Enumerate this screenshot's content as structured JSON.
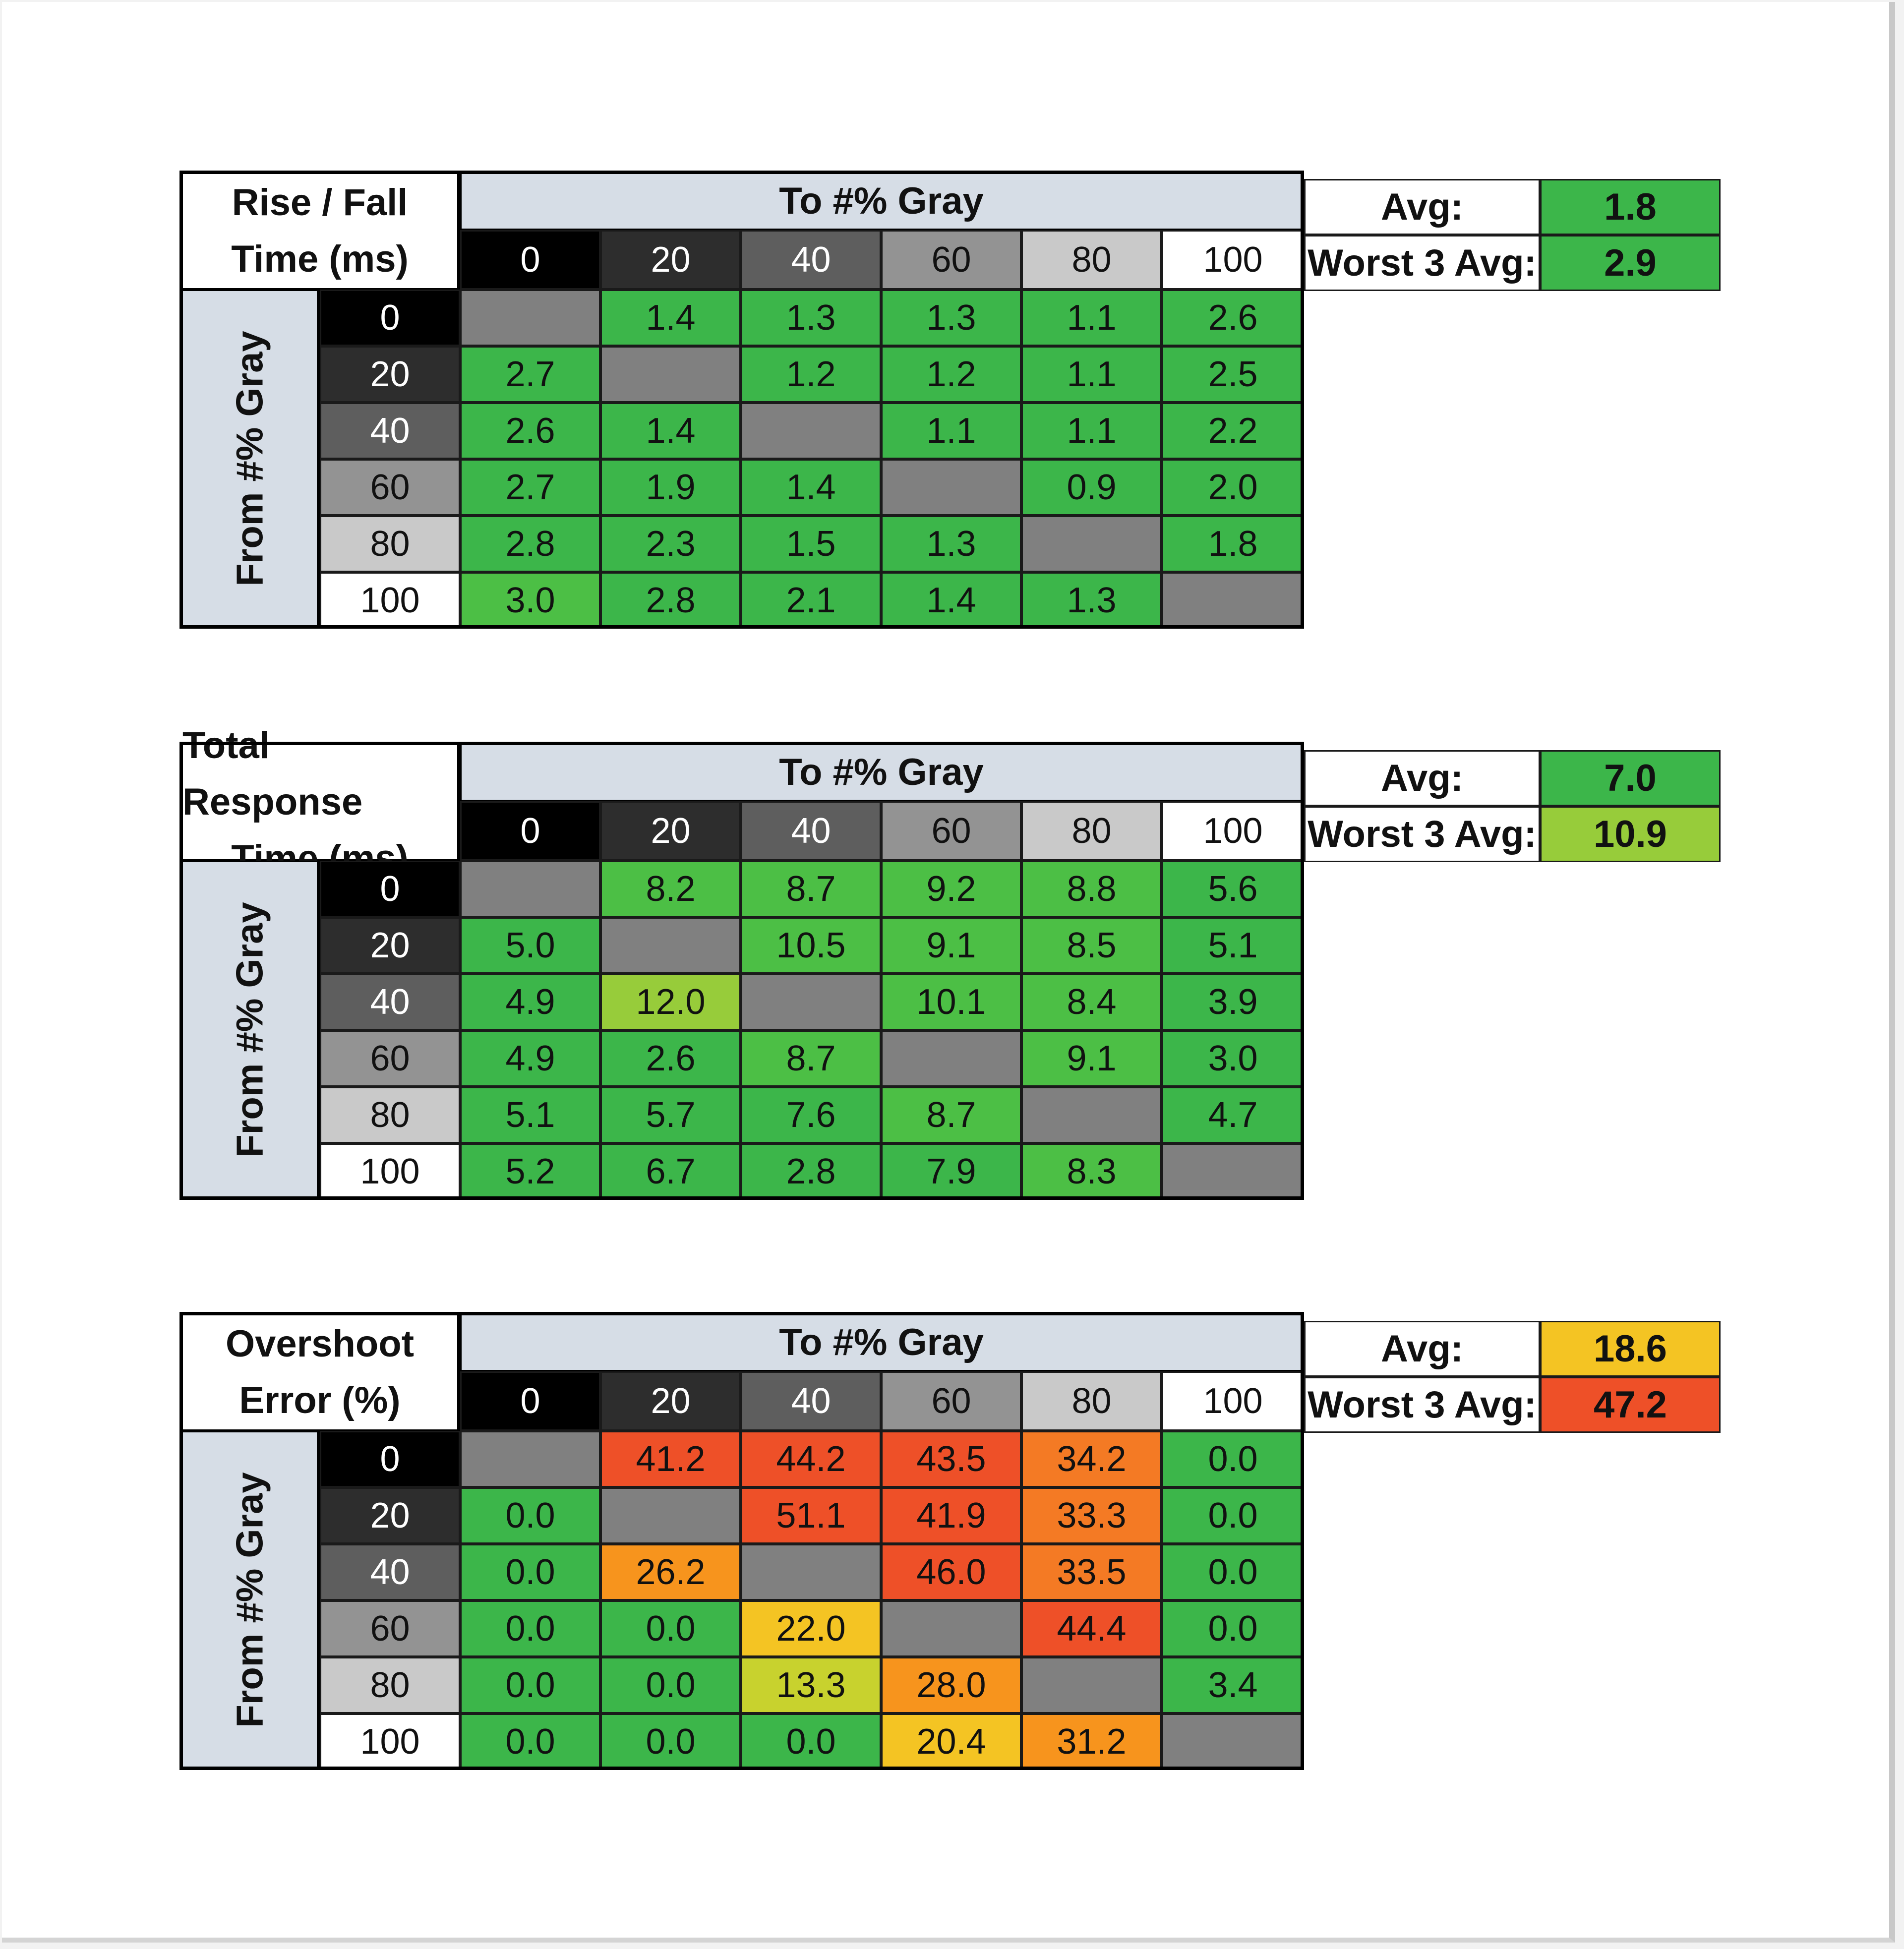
{
  "to_label": "To #% Gray",
  "from_label": "From #% Gray",
  "levels": [
    "0",
    "20",
    "40",
    "60",
    "80",
    "100"
  ],
  "level_colors": {
    "bg": [
      "#000000",
      "#2d2d2d",
      "#5e5e5e",
      "#939393",
      "#c9c9c9",
      "#ffffff"
    ],
    "fg": [
      "#ffffff",
      "#ffffff",
      "#ffffff",
      "#111111",
      "#111111",
      "#111111"
    ]
  },
  "avg_label": "Avg:",
  "worst_label": "Worst 3 Avg:",
  "colors": {
    "diagonal": "#808080",
    "scale": [
      "#3cb64a",
      "#4cbf45",
      "#97cc3a",
      "#c8d22e",
      "#f4c423",
      "#f7941d",
      "#f47a24",
      "#ee5028",
      "#e9402a"
    ]
  },
  "chart_data": [
    {
      "type": "table",
      "title_lines": [
        "Rise / Fall",
        "Time (ms)"
      ],
      "metric": "rise_fall",
      "columns": [
        "0",
        "20",
        "40",
        "60",
        "80",
        "100"
      ],
      "rows": [
        "0",
        "20",
        "40",
        "60",
        "80",
        "100"
      ],
      "values": [
        [
          null,
          "1.4",
          "1.3",
          "1.3",
          "1.1",
          "2.6"
        ],
        [
          "2.7",
          null,
          "1.2",
          "1.2",
          "1.1",
          "2.5"
        ],
        [
          "2.6",
          "1.4",
          null,
          "1.1",
          "1.1",
          "2.2"
        ],
        [
          "2.7",
          "1.9",
          "1.4",
          null,
          "0.9",
          "2.0"
        ],
        [
          "2.8",
          "2.3",
          "1.5",
          "1.3",
          null,
          "1.8"
        ],
        [
          "3.0",
          "2.8",
          "2.1",
          "1.4",
          "1.3",
          null
        ]
      ],
      "avg": "1.8",
      "worst3_avg": "2.9"
    },
    {
      "type": "table",
      "title_lines": [
        "Total Response",
        "Time (ms)"
      ],
      "metric": "total",
      "columns": [
        "0",
        "20",
        "40",
        "60",
        "80",
        "100"
      ],
      "rows": [
        "0",
        "20",
        "40",
        "60",
        "80",
        "100"
      ],
      "values": [
        [
          null,
          "8.2",
          "8.7",
          "9.2",
          "8.8",
          "5.6"
        ],
        [
          "5.0",
          null,
          "10.5",
          "9.1",
          "8.5",
          "5.1"
        ],
        [
          "4.9",
          "12.0",
          null,
          "10.1",
          "8.4",
          "3.9"
        ],
        [
          "4.9",
          "2.6",
          "8.7",
          null,
          "9.1",
          "3.0"
        ],
        [
          "5.1",
          "5.7",
          "7.6",
          "8.7",
          null,
          "4.7"
        ],
        [
          "5.2",
          "6.7",
          "2.8",
          "7.9",
          "8.3",
          null
        ]
      ],
      "avg": "7.0",
      "worst3_avg": "10.9"
    },
    {
      "type": "table",
      "title_lines": [
        "Overshoot",
        "Error (%)"
      ],
      "metric": "overshoot",
      "columns": [
        "0",
        "20",
        "40",
        "60",
        "80",
        "100"
      ],
      "rows": [
        "0",
        "20",
        "40",
        "60",
        "80",
        "100"
      ],
      "values": [
        [
          null,
          "41.2",
          "44.2",
          "43.5",
          "34.2",
          "0.0"
        ],
        [
          "0.0",
          null,
          "51.1",
          "41.9",
          "33.3",
          "0.0"
        ],
        [
          "0.0",
          "26.2",
          null,
          "46.0",
          "33.5",
          "0.0"
        ],
        [
          "0.0",
          "0.0",
          "22.0",
          null,
          "44.4",
          "0.0"
        ],
        [
          "0.0",
          "0.0",
          "13.3",
          "28.0",
          null,
          "3.4"
        ],
        [
          "0.0",
          "0.0",
          "0.0",
          "20.4",
          "31.2",
          null
        ]
      ],
      "avg": "18.6",
      "worst3_avg": "47.2"
    }
  ]
}
